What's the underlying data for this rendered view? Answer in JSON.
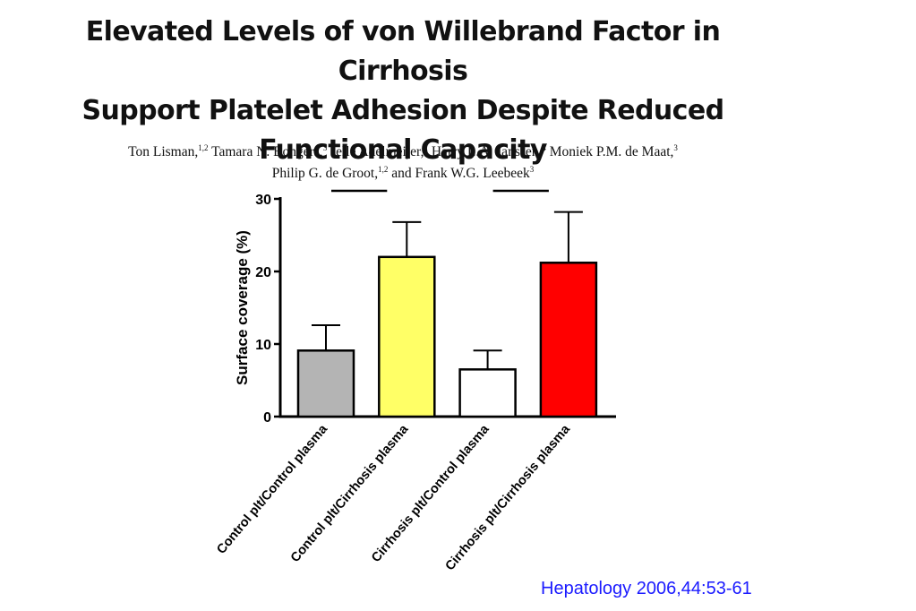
{
  "title": {
    "line1": "Elevated Levels of von Willebrand Factor in Cirrhosis",
    "line2": "Support Platelet Adhesion Despite Reduced",
    "line3": "Functional Capacity"
  },
  "authors": {
    "line1": [
      {
        "name": "Ton Lisman,",
        "sup": "1,2"
      },
      {
        "name": " Tamara N. Bongers,",
        "sup": "3"
      },
      {
        "name": " Jelle Adelmeijer,",
        "sup": "1"
      },
      {
        "name": " Harry L.A. Janssen,",
        "sup": "4"
      },
      {
        "name": " Moniek P.M. de Maat,",
        "sup": "3"
      }
    ],
    "line2": [
      {
        "name": "Philip G. de Groot,",
        "sup": "1,2"
      },
      {
        "name": " and Frank W.G. Leebeek",
        "sup": "3"
      }
    ]
  },
  "citation": "Hepatology 2006,44:53-61",
  "chart_data": {
    "type": "bar",
    "title": "",
    "xlabel": "",
    "ylabel": "Surface coverage (%)",
    "ylim": [
      0,
      30
    ],
    "yticks": [
      "0",
      "10",
      "20",
      "30"
    ],
    "categories": [
      "Control plt/Control plasma",
      "Control plt/Cirrhosis plasma",
      "Cirrhosis plt/Control plasma",
      "Cirrhosis plt/Cirrhosis plasma"
    ],
    "values": [
      9.1,
      22.0,
      6.5,
      21.2
    ],
    "errors": [
      3.5,
      4.8,
      2.6,
      7.0
    ],
    "colors": [
      "#b4b4b4",
      "#ffff66",
      "#ffffff",
      "#ff0000"
    ],
    "comparison_brackets": [
      [
        0,
        1
      ],
      [
        2,
        3
      ]
    ],
    "grid": false,
    "legend": "none"
  }
}
